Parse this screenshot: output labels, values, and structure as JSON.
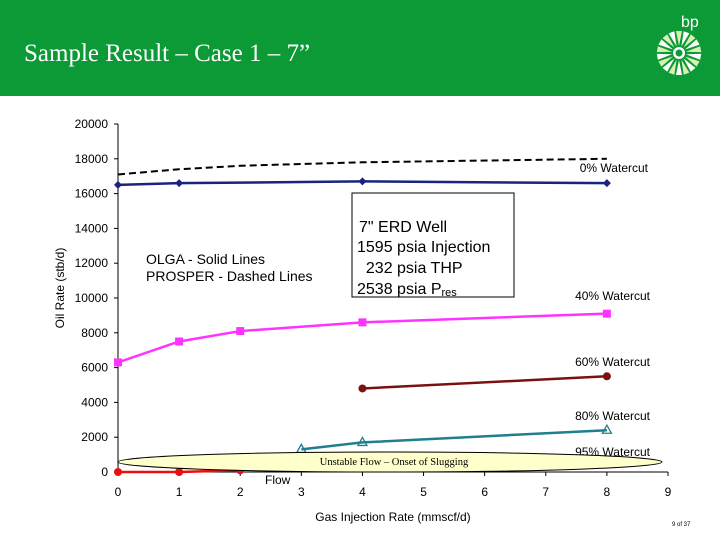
{
  "header": {
    "title": "Sample Result – Case 1 – 7”",
    "logo_text": "bp",
    "color": "#0b9a36"
  },
  "page_number": "9 of 37",
  "chart_data": {
    "type": "line",
    "title": "",
    "xlabel": "Gas Injection Rate (mmscf/d)",
    "ylabel": "Oil Rate (stb/d)",
    "xlim": [
      0,
      9
    ],
    "ylim": [
      0,
      20000
    ],
    "xticks": [
      "0",
      "1",
      "2",
      "3",
      "4",
      "5",
      "6",
      "7",
      "8",
      "9"
    ],
    "yticks": [
      "0",
      "2000",
      "4000",
      "6000",
      "8000",
      "10000",
      "12000",
      "14000",
      "16000",
      "18000",
      "20000"
    ],
    "grid": false,
    "legend_text": "OLGA - Solid Lines\nPROSPER - Dashed Lines",
    "info_box": [
      "7\" ERD Well",
      "1595 psia Injection",
      "  232 psia THP",
      "2538 psia P"
    ],
    "info_sub": "res",
    "unstable_label": "Unstable Flow – Onset of Slugging",
    "flow_label": "Flow",
    "series": [
      {
        "name": "0% Watercut",
        "style": "solid",
        "color": "#1a237e",
        "marker": "diamond",
        "x": [
          0,
          1,
          4,
          8
        ],
        "y": [
          16500,
          16600,
          16700,
          16600
        ]
      },
      {
        "name": "",
        "style": "dashed",
        "color": "#000000",
        "marker": "none",
        "x": [
          0,
          1,
          2,
          4,
          8
        ],
        "y": [
          17100,
          17400,
          17600,
          17800,
          18000
        ]
      },
      {
        "name": "40% Watercut",
        "style": "solid",
        "color": "#ff33ff",
        "marker": "square",
        "x": [
          0,
          1,
          2,
          4,
          8
        ],
        "y": [
          6300,
          7500,
          8100,
          8600,
          9100
        ]
      },
      {
        "name": "60% Watercut",
        "style": "solid",
        "color": "#7b1010",
        "marker": "circle",
        "x": [
          4,
          8
        ],
        "y": [
          4800,
          5500
        ]
      },
      {
        "name": "80% Watercut",
        "style": "solid",
        "color": "#1f7f8c",
        "marker": "triangle",
        "x": [
          3,
          4,
          8
        ],
        "y": [
          1300,
          1700,
          2400
        ]
      },
      {
        "name": "95% Watercut",
        "style": "solid",
        "color": "#e81010",
        "marker": "circle",
        "x": [
          0,
          1,
          2
        ],
        "y": [
          0,
          0,
          100
        ]
      }
    ]
  }
}
